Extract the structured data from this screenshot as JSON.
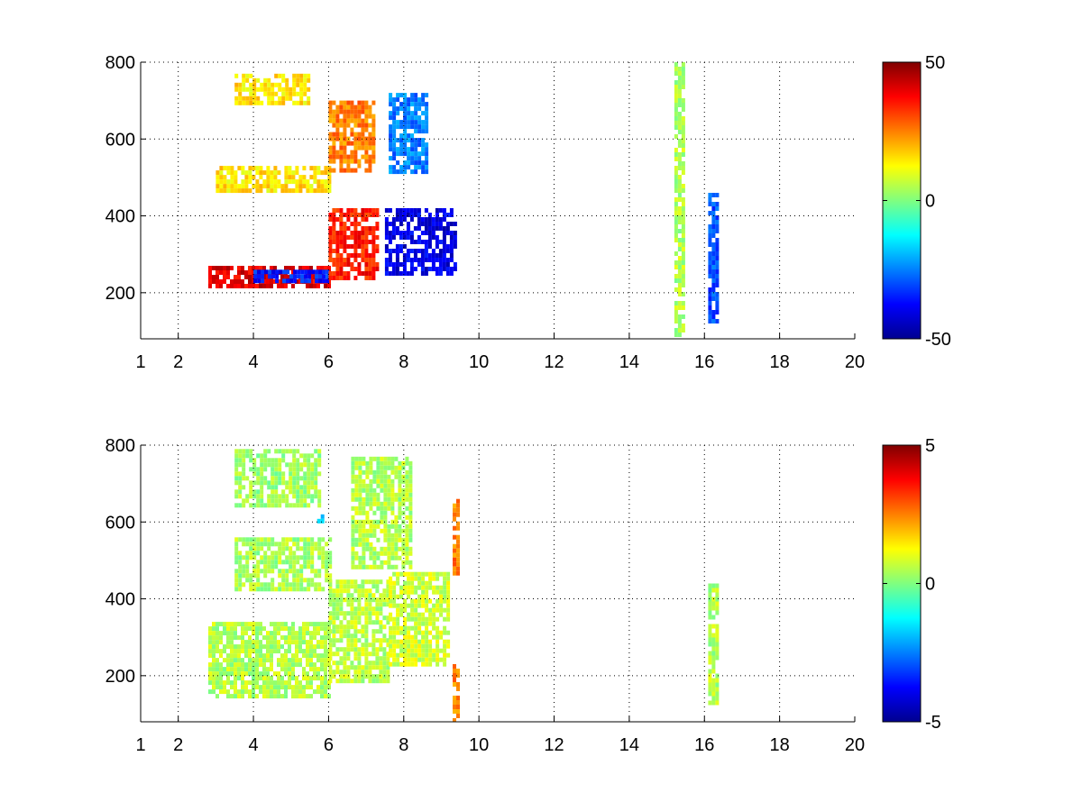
{
  "chart_data": [
    {
      "type": "heatmap",
      "title": "",
      "xlabel": "",
      "ylabel": "",
      "xlim": [
        1,
        20
      ],
      "ylim": [
        80,
        800
      ],
      "grid": true,
      "colormap": "jet",
      "x_ticks": [
        1,
        2,
        4,
        6,
        8,
        10,
        12,
        14,
        16,
        18,
        20
      ],
      "y_ticks": [
        200,
        400,
        600,
        800
      ],
      "colorbar": {
        "min": -50,
        "max": 50,
        "ticks": [
          50,
          0,
          -50
        ]
      },
      "features": [
        {
          "x_start": 2.8,
          "x_end": 6.0,
          "y_start": 215,
          "y_end": 270,
          "value": 40
        },
        {
          "x_start": 4.0,
          "x_end": 6.0,
          "y_start": 230,
          "y_end": 260,
          "value": -35
        },
        {
          "x_start": 6.0,
          "x_end": 7.3,
          "y_start": 240,
          "y_end": 420,
          "value": 35
        },
        {
          "x_start": 7.5,
          "x_end": 9.4,
          "y_start": 250,
          "y_end": 420,
          "value": -40
        },
        {
          "x_start": 3.0,
          "x_end": 6.0,
          "y_start": 460,
          "y_end": 530,
          "value": 15
        },
        {
          "x_start": 6.0,
          "x_end": 7.2,
          "y_start": 520,
          "y_end": 700,
          "value": 25
        },
        {
          "x_start": 7.6,
          "x_end": 8.6,
          "y_start": 520,
          "y_end": 720,
          "value": -25
        },
        {
          "x_start": 3.5,
          "x_end": 5.5,
          "y_start": 690,
          "y_end": 770,
          "value": 15
        },
        {
          "x_start": 16.1,
          "x_end": 16.3,
          "y_start": 130,
          "y_end": 460,
          "value": -30
        },
        {
          "x_start": 15.2,
          "x_end": 15.4,
          "y_start": 90,
          "y_end": 800,
          "value": 5
        }
      ]
    },
    {
      "type": "heatmap",
      "title": "",
      "xlabel": "",
      "ylabel": "",
      "xlim": [
        1,
        20
      ],
      "ylim": [
        80,
        800
      ],
      "grid": true,
      "colormap": "jet",
      "x_ticks": [
        1,
        2,
        4,
        6,
        8,
        10,
        12,
        14,
        16,
        18,
        20
      ],
      "y_ticks": [
        200,
        400,
        600,
        800
      ],
      "colorbar": {
        "min": -5,
        "max": 5,
        "ticks": [
          5,
          0,
          -5
        ]
      },
      "features": [
        {
          "x_start": 2.8,
          "x_end": 6.0,
          "y_start": 150,
          "y_end": 340,
          "value": 0.5
        },
        {
          "x_start": 6.0,
          "x_end": 7.6,
          "y_start": 190,
          "y_end": 450,
          "value": 0.6
        },
        {
          "x_start": 7.6,
          "x_end": 9.2,
          "y_start": 230,
          "y_end": 470,
          "value": 0.8
        },
        {
          "x_start": 3.5,
          "x_end": 6.0,
          "y_start": 420,
          "y_end": 560,
          "value": 0.4
        },
        {
          "x_start": 6.6,
          "x_end": 8.2,
          "y_start": 480,
          "y_end": 770,
          "value": 0.5
        },
        {
          "x_start": 3.5,
          "x_end": 5.8,
          "y_start": 640,
          "y_end": 790,
          "value": 0.3
        },
        {
          "x_start": 9.3,
          "x_end": 9.4,
          "y_start": 80,
          "y_end": 230,
          "value": 2.5
        },
        {
          "x_start": 9.3,
          "x_end": 9.4,
          "y_start": 470,
          "y_end": 660,
          "value": 2.5
        },
        {
          "x_start": 16.1,
          "x_end": 16.3,
          "y_start": 130,
          "y_end": 440,
          "value": 0.5
        },
        {
          "x_start": 5.6,
          "x_end": 5.8,
          "y_start": 600,
          "y_end": 620,
          "value": -2
        }
      ]
    }
  ]
}
